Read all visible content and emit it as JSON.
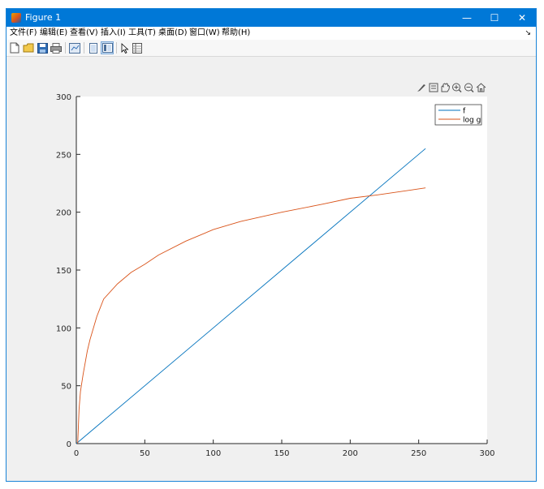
{
  "window": {
    "title": "Figure 1",
    "minimize_glyph": "—",
    "maximize_glyph": "☐",
    "close_glyph": "✕"
  },
  "menu": {
    "items": [
      "文件(F)",
      "编辑(E)",
      "查看(V)",
      "插入(I)",
      "工具(T)",
      "桌面(D)",
      "窗口(W)",
      "帮助(H)"
    ],
    "dock_glyph": "↘"
  },
  "toolbar": {
    "icons": [
      "new-figure-icon",
      "open-file-icon",
      "save-icon",
      "print-icon",
      "link-plot-icon",
      "hide-plot-tools-icon",
      "show-plot-tools-icon",
      "edit-plot-icon",
      "property-inspector-icon"
    ]
  },
  "axes_toolbar": {
    "icons": [
      "brush-icon",
      "datatip-icon",
      "pan-icon",
      "zoom-in-icon",
      "zoom-out-icon",
      "home-icon"
    ]
  },
  "chart_data": {
    "type": "line",
    "title": "",
    "xlabel": "",
    "ylabel": "",
    "xlim": [
      0,
      300
    ],
    "ylim": [
      0,
      300
    ],
    "xticks": [
      0,
      50,
      100,
      150,
      200,
      250,
      300
    ],
    "yticks": [
      0,
      50,
      100,
      150,
      200,
      250,
      300
    ],
    "grid": false,
    "legend_position": "top-right",
    "series": [
      {
        "name": "f",
        "color": "#0072bd",
        "x": [
          0,
          255
        ],
        "y": [
          0,
          255
        ]
      },
      {
        "name": "log g",
        "color": "#d95319",
        "x": [
          1,
          2,
          3,
          5,
          8,
          10,
          15,
          20,
          30,
          40,
          50,
          60,
          80,
          100,
          120,
          150,
          180,
          200,
          220,
          255
        ],
        "y": [
          0,
          30,
          45,
          60,
          80,
          90,
          110,
          125,
          138,
          148,
          155,
          163,
          175,
          185,
          192,
          200,
          207,
          212,
          215,
          221
        ]
      }
    ]
  }
}
